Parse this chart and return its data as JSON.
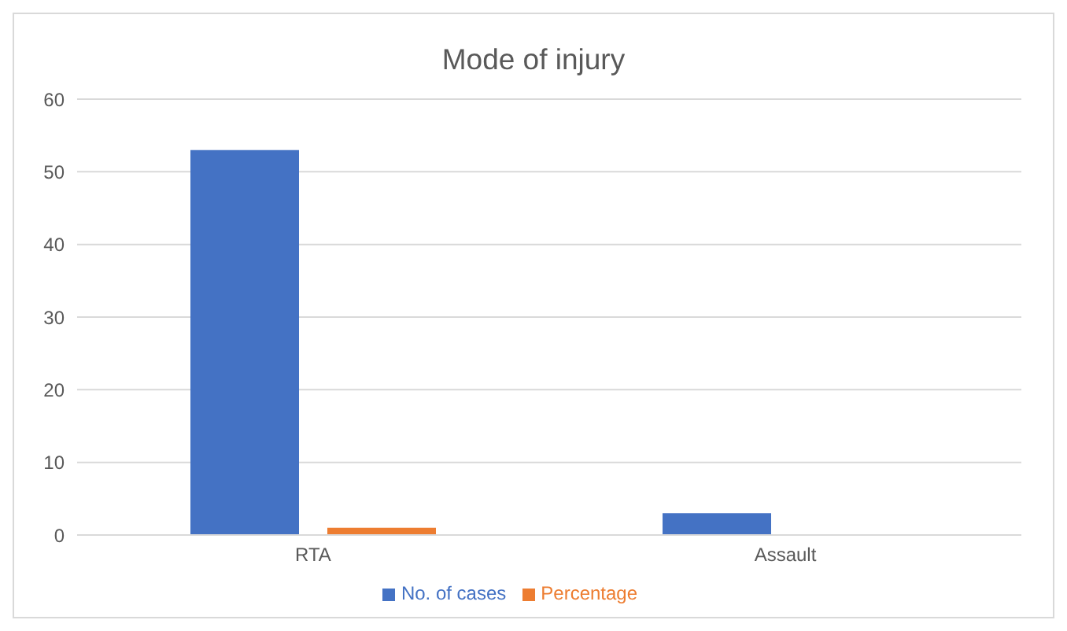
{
  "chart_data": {
    "type": "bar",
    "title": "Mode of injury",
    "categories": [
      "RTA",
      "Assault"
    ],
    "series": [
      {
        "name": "No. of cases",
        "color": "#4472c4",
        "values": [
          53,
          3
        ]
      },
      {
        "name": "Percentage",
        "color": "#ed7d31",
        "values": [
          1,
          0
        ]
      }
    ],
    "ylim": [
      0,
      60
    ],
    "yticks": [
      0,
      10,
      20,
      30,
      40,
      50,
      60
    ],
    "grid": "y",
    "legend": "bottom"
  }
}
